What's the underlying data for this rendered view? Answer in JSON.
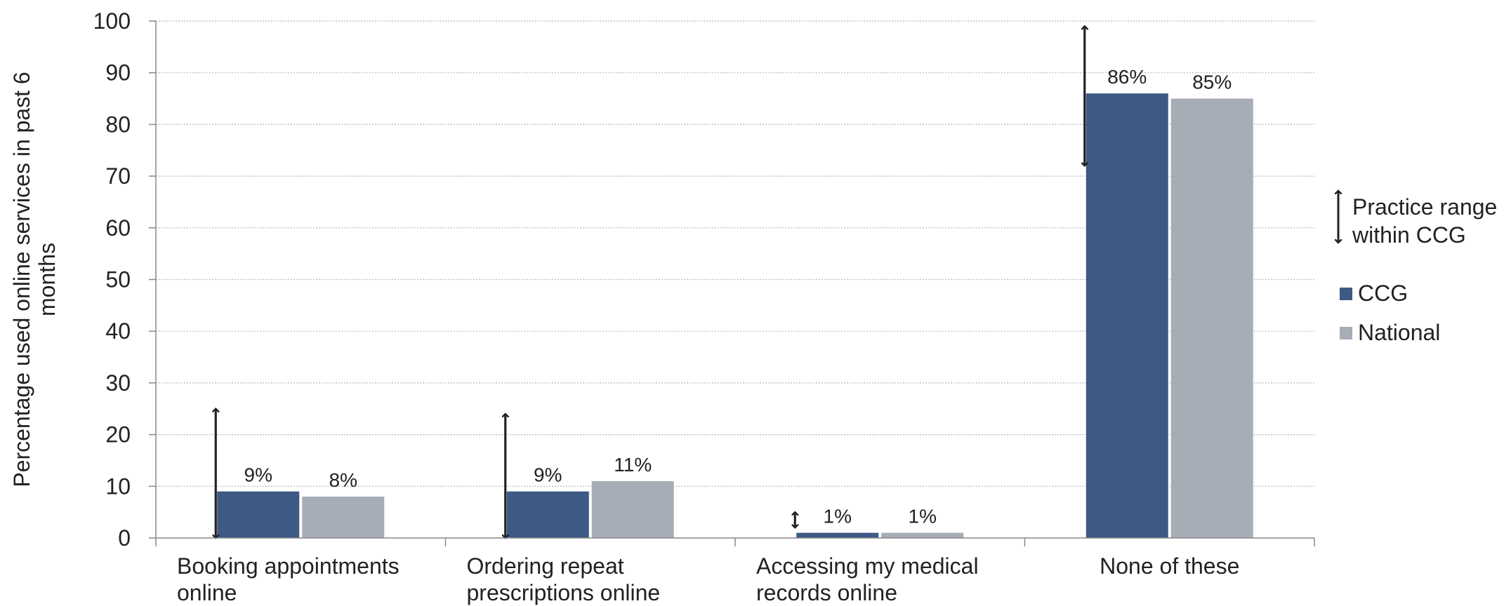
{
  "chart_data": {
    "type": "bar",
    "ylabel": [
      "Percentage used online services in past 6",
      "months"
    ],
    "ylim": [
      0,
      100
    ],
    "yticks": [
      0,
      10,
      20,
      30,
      40,
      50,
      60,
      70,
      80,
      90,
      100
    ],
    "grid": true,
    "legend_position": "right",
    "categories": [
      [
        "Booking appointments",
        "online"
      ],
      [
        "Ordering repeat",
        "prescriptions online"
      ],
      [
        "Accessing my medical",
        "records online"
      ],
      [
        "None of these"
      ]
    ],
    "series": [
      {
        "name": "CCG",
        "color": "#3d5a85",
        "values": [
          9,
          9,
          1,
          86
        ],
        "labels": [
          "9%",
          "9%",
          "1%",
          "86%"
        ]
      },
      {
        "name": "National",
        "color": "#a6adb6",
        "values": [
          8,
          11,
          1,
          85
        ],
        "labels": [
          "8%",
          "11%",
          "1%",
          "85%"
        ]
      }
    ],
    "practice_range": {
      "legend_label": [
        "Practice range",
        "within CCG"
      ],
      "ranges": [
        [
          0,
          25
        ],
        [
          0,
          24
        ],
        [
          2,
          5
        ],
        [
          72,
          99
        ]
      ]
    }
  }
}
